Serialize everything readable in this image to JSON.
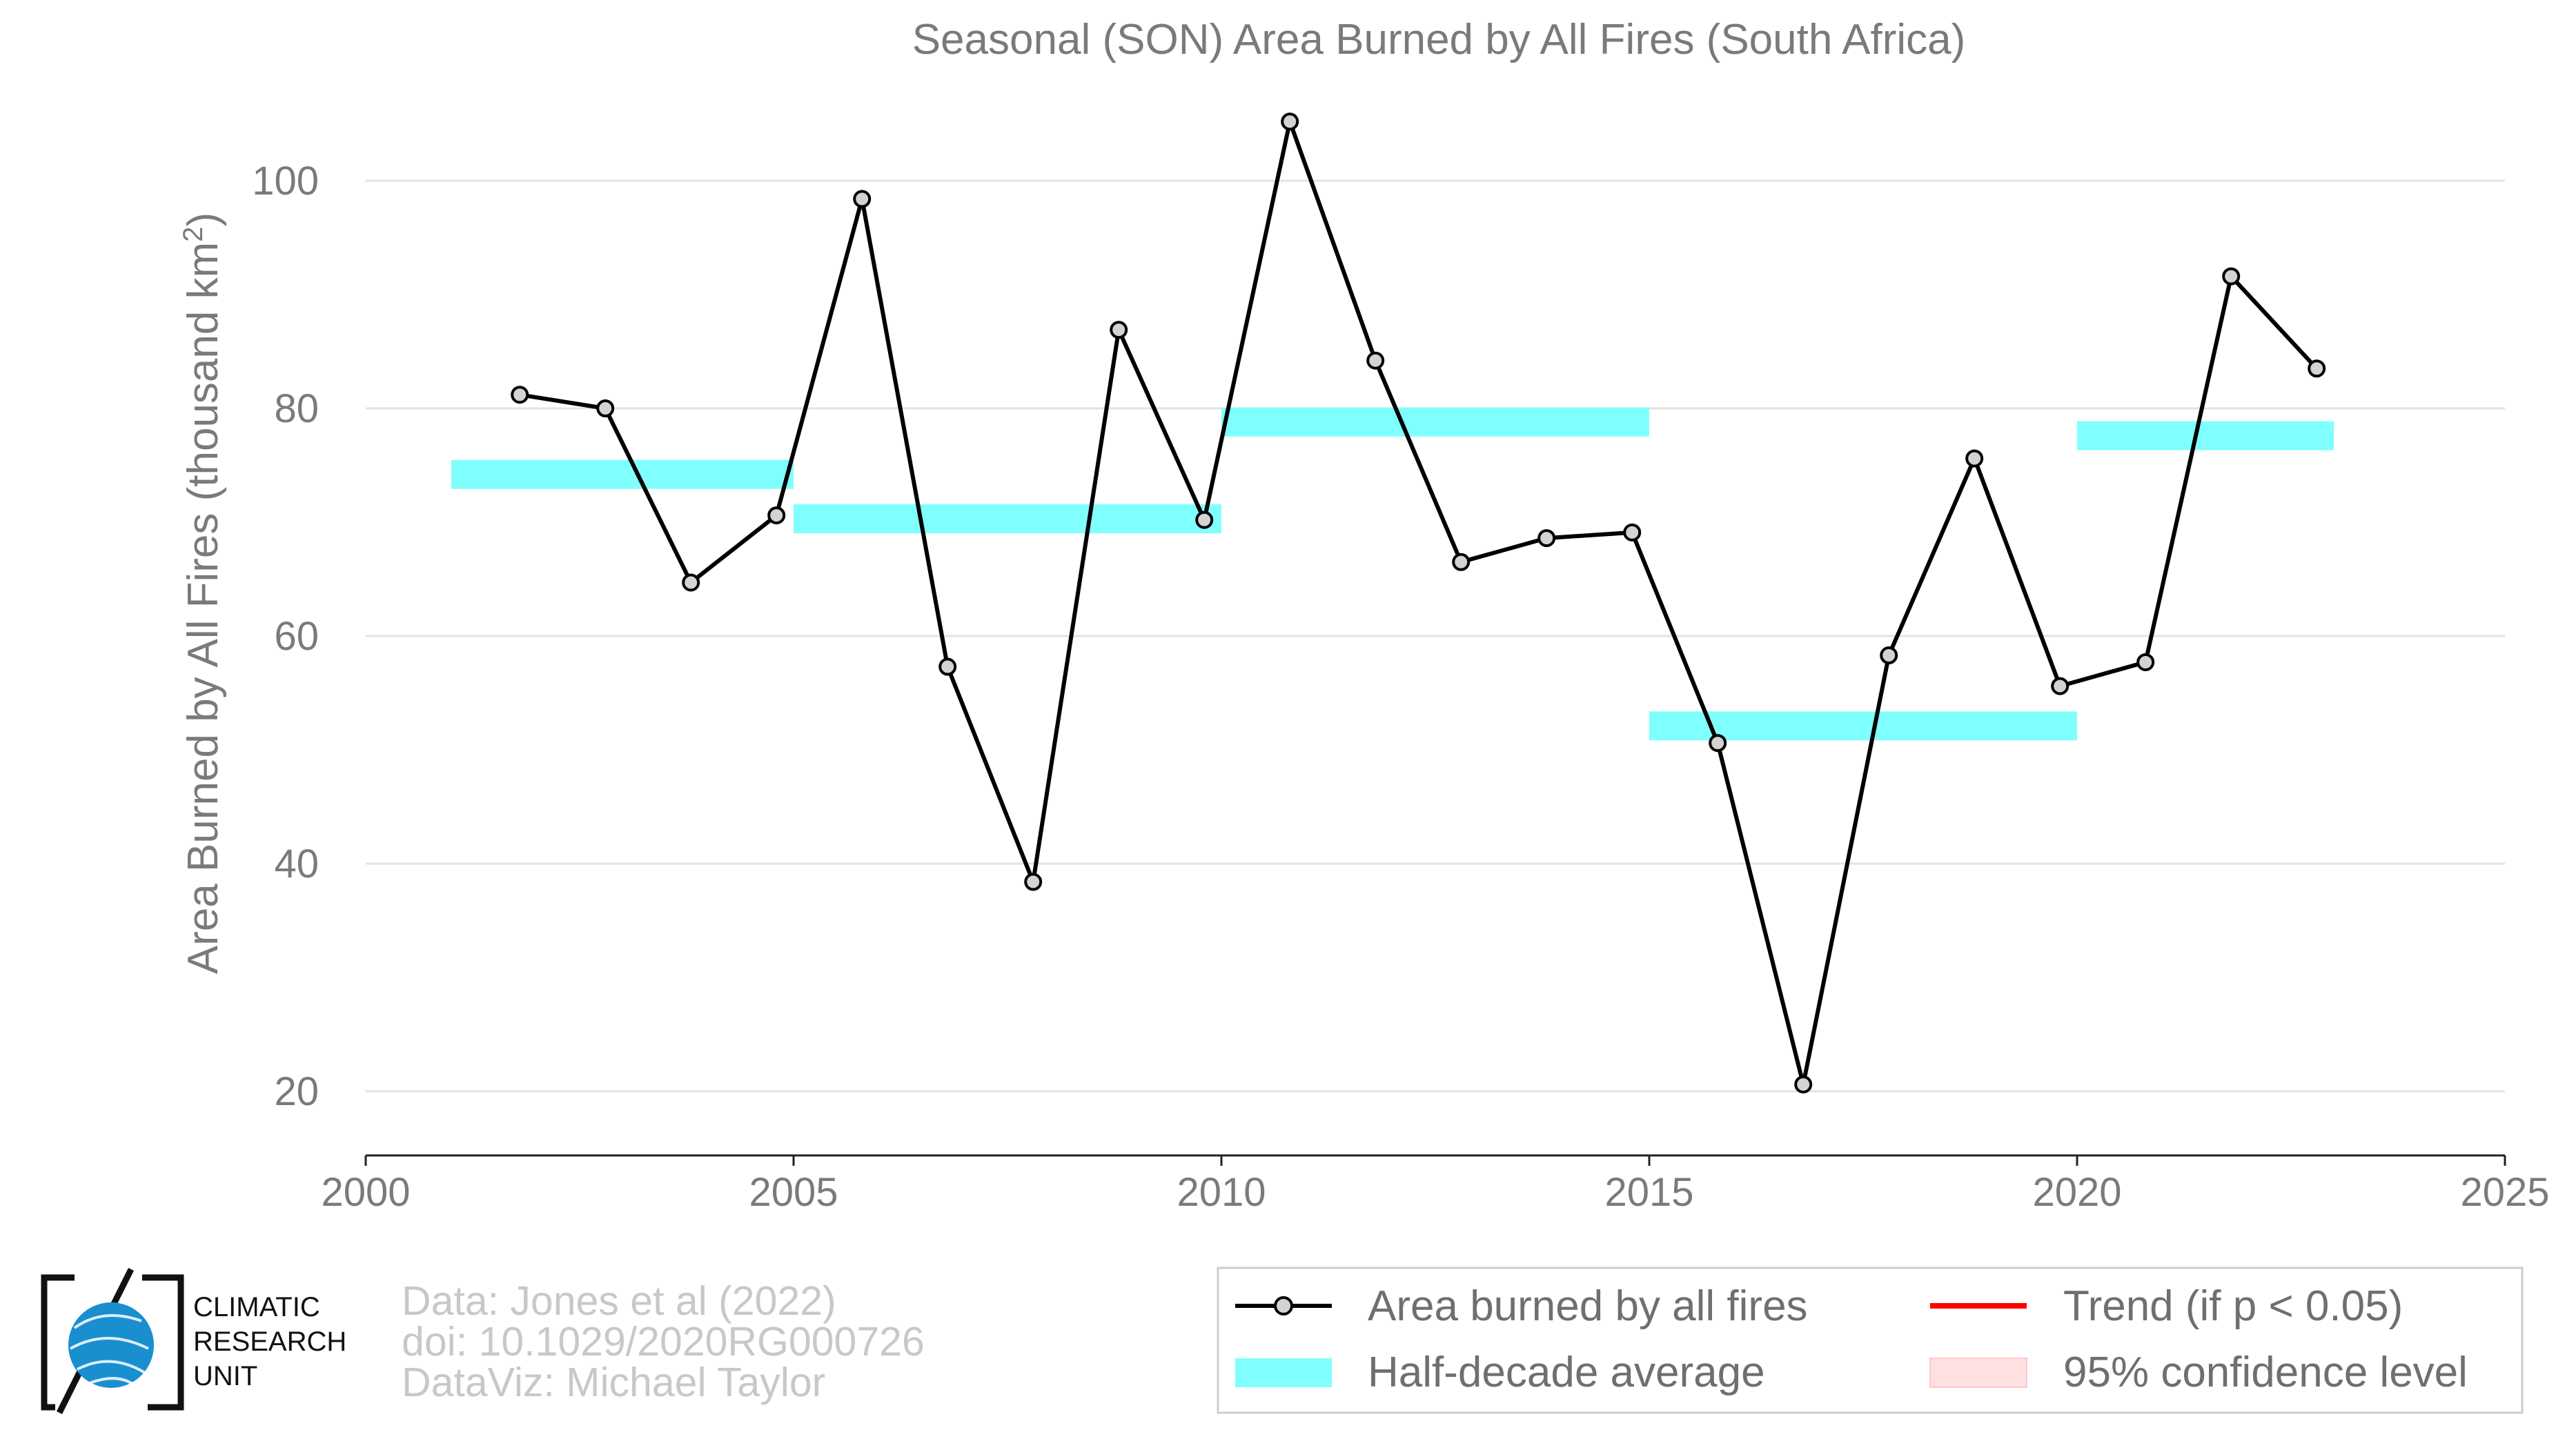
{
  "chart_data": {
    "type": "line",
    "title": "Seasonal (SON) Area Burned by All Fires (South Africa)",
    "ylabel": "Area Burned by All Fires (thousand km²)",
    "ylabel_main": "Area Burned by All Fires (thousand km",
    "ylabel_sup": "2",
    "ylabel_end": ")",
    "xlim": [
      2000,
      2025
    ],
    "ylim": [
      14,
      108
    ],
    "xticks": [
      2000,
      2005,
      2010,
      2015,
      2020,
      2025
    ],
    "yticks": [
      20,
      40,
      60,
      80,
      100
    ],
    "grid": true,
    "series": [
      {
        "name": "Area burned by all fires",
        "color": "#000000",
        "x": [
          2001.8,
          2002.8,
          2003.8,
          2004.8,
          2005.8,
          2006.8,
          2007.8,
          2008.8,
          2009.8,
          2010.8,
          2011.8,
          2012.8,
          2013.8,
          2014.8,
          2015.8,
          2016.8,
          2017.8,
          2018.8,
          2019.8,
          2020.8,
          2021.8,
          2022.8
        ],
        "y": [
          81.2,
          80.0,
          64.7,
          70.6,
          98.4,
          57.3,
          38.4,
          86.9,
          70.2,
          105.2,
          84.2,
          66.5,
          68.6,
          69.1,
          50.6,
          20.6,
          58.3,
          75.6,
          55.6,
          57.7,
          91.6,
          83.5
        ]
      }
    ],
    "half_decade_average": {
      "name": "Half-decade average",
      "color": "#80ffff",
      "segments": [
        {
          "x_start": 2001.0,
          "x_end": 2005.0,
          "value": 74.2
        },
        {
          "x_start": 2005.0,
          "x_end": 2010.0,
          "value": 70.3
        },
        {
          "x_start": 2010.0,
          "x_end": 2015.0,
          "value": 78.8
        },
        {
          "x_start": 2015.0,
          "x_end": 2020.0,
          "value": 52.1
        },
        {
          "x_start": 2020.0,
          "x_end": 2023.0,
          "value": 77.6
        }
      ]
    },
    "legend": {
      "placement": "bottom-right",
      "items": [
        {
          "label": "Area burned by all fires",
          "kind": "line-marker",
          "color": "#000000"
        },
        {
          "label": "Trend (if p < 0.05)",
          "kind": "line",
          "color": "#ff0000"
        },
        {
          "label": "Half-decade average",
          "kind": "band",
          "color": "#80ffff"
        },
        {
          "label": "95% confidence level",
          "kind": "patch",
          "color": "#ffe0e0"
        }
      ]
    }
  },
  "credits": {
    "line1": "Data: Jones et al (2022)",
    "line2": "doi: 10.1029/2020RG000726",
    "line3": "DataViz: Michael Taylor"
  },
  "logo": {
    "line1": "CLIMATIC",
    "line2": "RESEARCH",
    "line3": "UNIT",
    "accent": "#1a8fd0"
  }
}
